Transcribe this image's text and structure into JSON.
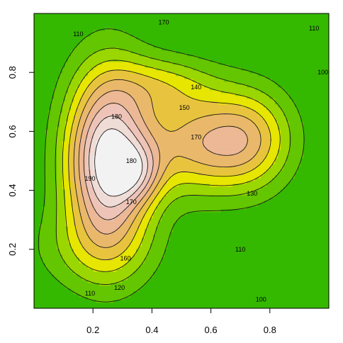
{
  "chart_data": {
    "type": "heatmap",
    "subtype": "filled-contour",
    "title": "",
    "xlabel": "",
    "ylabel": "",
    "xlim": [
      0,
      1
    ],
    "ylim": [
      0,
      1
    ],
    "x_ticks": [
      "0.2",
      "0.4",
      "0.6",
      "0.8"
    ],
    "y_ticks": [
      "0.2",
      "0.4",
      "0.6",
      "0.8"
    ],
    "x_tick_values": [
      0.2,
      0.4,
      0.6,
      0.8
    ],
    "y_tick_values": [
      0.2,
      0.4,
      0.6,
      0.8
    ],
    "grid": false,
    "legend": "none",
    "colormap": "terrain",
    "levels": [
      100,
      110,
      120,
      130,
      140,
      150,
      160,
      170,
      180,
      190
    ],
    "band_colors": [
      "#00a600",
      "#35b800",
      "#63c600",
      "#9ad600",
      "#e6e600",
      "#e8c43e",
      "#eab86a",
      "#ecb895",
      "#eec4b8",
      "#f0dcd6",
      "#f2f2f2"
    ],
    "field": {
      "base": 100,
      "peaks": [
        {
          "x": 0.25,
          "y": 0.5,
          "amp": 95,
          "sx": 0.1,
          "sy": 0.21
        },
        {
          "x": 0.35,
          "y": 0.46,
          "amp": 28,
          "sx": 0.06,
          "sy": 0.07
        },
        {
          "x": 0.57,
          "y": 0.56,
          "amp": 52,
          "sx": 0.15,
          "sy": 0.12
        },
        {
          "x": 0.74,
          "y": 0.58,
          "amp": 30,
          "sx": 0.1,
          "sy": 0.12
        },
        {
          "x": 0.44,
          "y": 0.76,
          "amp": 25,
          "sx": 0.12,
          "sy": 0.07
        },
        {
          "x": 0.2,
          "y": 0.2,
          "amp": 15,
          "sx": 0.16,
          "sy": 0.1
        }
      ]
    },
    "contour_labels": [
      {
        "text": "110",
        "x": 0.15,
        "y": 0.93
      },
      {
        "text": "170",
        "x": 0.44,
        "y": 0.97
      },
      {
        "text": "110",
        "x": 0.95,
        "y": 0.95
      },
      {
        "text": "100",
        "x": 0.98,
        "y": 0.8
      },
      {
        "text": "140",
        "x": 0.55,
        "y": 0.75
      },
      {
        "text": "150",
        "x": 0.51,
        "y": 0.68
      },
      {
        "text": "180",
        "x": 0.28,
        "y": 0.65
      },
      {
        "text": "170",
        "x": 0.55,
        "y": 0.58
      },
      {
        "text": "180",
        "x": 0.33,
        "y": 0.5
      },
      {
        "text": "190",
        "x": 0.19,
        "y": 0.44
      },
      {
        "text": "170",
        "x": 0.33,
        "y": 0.36
      },
      {
        "text": "130",
        "x": 0.74,
        "y": 0.39
      },
      {
        "text": "110",
        "x": 0.7,
        "y": 0.2
      },
      {
        "text": "160",
        "x": 0.31,
        "y": 0.17
      },
      {
        "text": "120",
        "x": 0.29,
        "y": 0.07
      },
      {
        "text": "110",
        "x": 0.19,
        "y": 0.05
      },
      {
        "text": "100",
        "x": 0.77,
        "y": 0.03
      }
    ]
  }
}
